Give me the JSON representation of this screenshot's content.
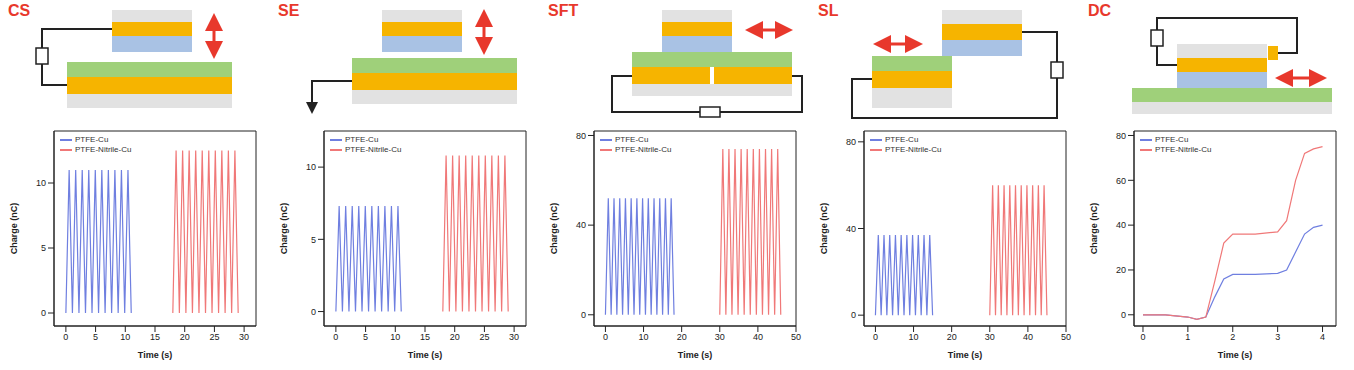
{
  "chart_data": [
    {
      "type": "line",
      "title": "CS",
      "x_label": "Time (s)",
      "y_label": "Charge (nC)",
      "xlim": [
        -2,
        32
      ],
      "xticks": [
        0,
        5,
        10,
        15,
        20,
        25,
        30
      ],
      "ylim": [
        -1,
        14
      ],
      "yticks": [
        0,
        5,
        10
      ],
      "legend": "upper left",
      "series": [
        {
          "name": "PTFE-Cu",
          "color": "#6f7fe0",
          "x": [
            0,
            0.55,
            1.1,
            1.65,
            2.2,
            2.75,
            3.3,
            3.85,
            4.4,
            4.95,
            5.5,
            6.05,
            6.6,
            7.15,
            7.7,
            8.25,
            8.8,
            9.35,
            9.9,
            10.45,
            11
          ],
          "values": [
            0,
            11,
            0,
            11,
            0,
            11,
            0,
            11,
            0,
            11,
            0,
            11,
            0,
            11,
            0,
            11,
            0,
            11,
            0,
            11,
            0
          ]
        },
        {
          "name": "PTFE-Nitrile-Cu",
          "color": "#f07878",
          "x": [
            18,
            18.55,
            19.1,
            19.65,
            20.2,
            20.75,
            21.3,
            21.85,
            22.4,
            22.95,
            23.5,
            24.05,
            24.6,
            25.15,
            25.7,
            26.25,
            26.8,
            27.35,
            27.9,
            28.45,
            29
          ],
          "values": [
            0,
            12.5,
            0,
            12.5,
            0,
            12.5,
            0,
            12.5,
            0,
            12.5,
            0,
            12.5,
            0,
            12.5,
            0,
            12.5,
            0,
            12.5,
            0,
            12.5,
            0
          ]
        }
      ]
    },
    {
      "type": "line",
      "title": "SE",
      "x_label": "Time (s)",
      "y_label": "Charge (nC)",
      "xlim": [
        -2,
        32
      ],
      "xticks": [
        0,
        5,
        10,
        15,
        20,
        25,
        30
      ],
      "ylim": [
        -1,
        12.5
      ],
      "yticks": [
        0,
        5,
        10
      ],
      "legend": "upper left",
      "series": [
        {
          "name": "PTFE-Cu",
          "color": "#6f7fe0",
          "x": [
            0,
            0.55,
            1.1,
            1.65,
            2.2,
            2.75,
            3.3,
            3.85,
            4.4,
            4.95,
            5.5,
            6.05,
            6.6,
            7.15,
            7.7,
            8.25,
            8.8,
            9.35,
            9.9,
            10.45,
            11
          ],
          "values": [
            0,
            7.3,
            0,
            7.3,
            0,
            7.3,
            0,
            7.3,
            0,
            7.3,
            0,
            7.3,
            0,
            7.3,
            0,
            7.3,
            0,
            7.3,
            0,
            7.3,
            0
          ]
        },
        {
          "name": "PTFE-Nitrile-Cu",
          "color": "#f07878",
          "x": [
            18,
            18.55,
            19.1,
            19.65,
            20.2,
            20.75,
            21.3,
            21.85,
            22.4,
            22.95,
            23.5,
            24.05,
            24.6,
            25.15,
            25.7,
            26.25,
            26.8,
            27.35,
            27.9,
            28.45,
            29
          ],
          "values": [
            0,
            10.8,
            0,
            10.8,
            0,
            10.8,
            0,
            10.8,
            0,
            10.8,
            0,
            10.8,
            0,
            10.8,
            0,
            10.8,
            0,
            10.8,
            0,
            10.8,
            0
          ]
        }
      ]
    },
    {
      "type": "line",
      "title": "SFT",
      "x_label": "Time (s)",
      "y_label": "Charge (nC)",
      "xlim": [
        -3,
        50
      ],
      "xticks": [
        0,
        10,
        20,
        30,
        40,
        50
      ],
      "ylim": [
        -5,
        82
      ],
      "yticks": [
        0,
        40,
        80
      ],
      "legend": "upper left",
      "series": [
        {
          "name": "PTFE-Cu",
          "color": "#6f7fe0",
          "x": [
            0,
            0.75,
            1.5,
            2.25,
            3,
            3.75,
            4.5,
            5.25,
            6,
            6.75,
            7.5,
            8.25,
            9,
            9.75,
            10.5,
            11.25,
            12,
            12.75,
            13.5,
            14.25,
            15,
            15.75,
            16.5,
            17.25,
            18
          ],
          "values": [
            0,
            52,
            0,
            52,
            0,
            52,
            0,
            52,
            0,
            52,
            0,
            52,
            0,
            52,
            0,
            52,
            0,
            52,
            0,
            52,
            0,
            52,
            0,
            52,
            0
          ]
        },
        {
          "name": "PTFE-Nitrile-Cu",
          "color": "#f07878",
          "x": [
            30,
            30.8,
            31.6,
            32.4,
            33.2,
            34,
            34.8,
            35.6,
            36.4,
            37.2,
            38,
            38.8,
            39.6,
            40.4,
            41.2,
            42,
            42.8,
            43.6,
            44.4,
            45.2,
            46
          ],
          "values": [
            0,
            74,
            0,
            74,
            0,
            74,
            0,
            74,
            0,
            74,
            0,
            74,
            0,
            74,
            0,
            74,
            0,
            74,
            0,
            74,
            0
          ]
        }
      ]
    },
    {
      "type": "line",
      "title": "SL",
      "x_label": "Time (s)",
      "y_label": "Charge (nC)",
      "xlim": [
        -3,
        50
      ],
      "xticks": [
        0,
        10,
        20,
        30,
        40,
        50
      ],
      "ylim": [
        -5,
        85
      ],
      "yticks": [
        0,
        40,
        80
      ],
      "legend": "upper left",
      "series": [
        {
          "name": "PTFE-Cu",
          "color": "#6f7fe0",
          "x": [
            0,
            0.75,
            1.5,
            2.25,
            3,
            3.75,
            4.5,
            5.25,
            6,
            6.75,
            7.5,
            8.25,
            9,
            9.75,
            10.5,
            11.25,
            12,
            12.75,
            13.5,
            14.25,
            15
          ],
          "values": [
            0,
            37,
            0,
            37,
            0,
            37,
            0,
            37,
            0,
            37,
            0,
            37,
            0,
            37,
            0,
            37,
            0,
            37,
            0,
            37,
            0
          ]
        },
        {
          "name": "PTFE-Nitrile-Cu",
          "color": "#f07878",
          "x": [
            30,
            30.75,
            31.5,
            32.25,
            33,
            33.75,
            34.5,
            35.25,
            36,
            36.75,
            37.5,
            38.25,
            39,
            39.75,
            40.5,
            41.25,
            42,
            42.75,
            43.5,
            44.25,
            45
          ],
          "values": [
            0,
            60,
            0,
            60,
            0,
            60,
            0,
            60,
            0,
            60,
            0,
            60,
            0,
            60,
            0,
            60,
            0,
            60,
            0,
            60,
            0
          ]
        }
      ]
    },
    {
      "type": "line",
      "title": "DC",
      "x_label": "Time (s)",
      "y_label": "Charge (nC)",
      "xlim": [
        -0.2,
        4.3
      ],
      "xticks": [
        0,
        1,
        2,
        3,
        4
      ],
      "ylim": [
        -5,
        82
      ],
      "yticks": [
        0,
        20,
        40,
        60,
        80
      ],
      "legend": "upper left",
      "series": [
        {
          "name": "PTFE-Cu",
          "color": "#6f7fe0",
          "x": [
            0,
            0.5,
            1,
            1.2,
            1.4,
            1.6,
            1.8,
            2,
            2.5,
            3,
            3.2,
            3.4,
            3.6,
            3.8,
            4
          ],
          "values": [
            0,
            0,
            -1,
            -2,
            -1,
            8,
            16,
            18,
            18,
            18.5,
            20,
            28,
            36,
            39,
            40
          ]
        },
        {
          "name": "PTFE-Nitrile-Cu",
          "color": "#f07878",
          "x": [
            0,
            0.5,
            1,
            1.2,
            1.4,
            1.6,
            1.8,
            2,
            2.5,
            3,
            3.2,
            3.4,
            3.6,
            3.8,
            4
          ],
          "values": [
            0,
            0,
            -1,
            -2,
            -1,
            15,
            32,
            36,
            36,
            37,
            42,
            60,
            72,
            74,
            75
          ]
        }
      ]
    }
  ]
}
